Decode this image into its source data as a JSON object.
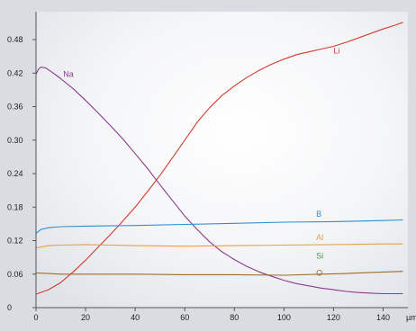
{
  "chart_data": {
    "type": "line",
    "title": "",
    "xlabel": "",
    "ylabel": "",
    "x_unit": "µm",
    "xlim": [
      0,
      150
    ],
    "ylim": [
      0,
      0.53
    ],
    "x_ticks": [
      0,
      20,
      40,
      60,
      80,
      100,
      120,
      140
    ],
    "y_ticks": [
      0,
      0.06,
      0.12,
      0.18,
      0.24,
      0.3,
      0.36,
      0.42,
      0.48
    ],
    "y_tick_labels": [
      "0",
      "0.06",
      "0.12",
      "0.18",
      "0.24",
      "0.30",
      "0.36",
      "0.42",
      "0.48"
    ],
    "grid": false,
    "series": [
      {
        "name": "Li",
        "color": "#d23b2e",
        "label_at": [
          120,
          0.455
        ],
        "points": [
          [
            0,
            0.024
          ],
          [
            5,
            0.032
          ],
          [
            10,
            0.045
          ],
          [
            15,
            0.064
          ],
          [
            20,
            0.085
          ],
          [
            25,
            0.108
          ],
          [
            30,
            0.131
          ],
          [
            35,
            0.155
          ],
          [
            40,
            0.18
          ],
          [
            45,
            0.208
          ],
          [
            50,
            0.237
          ],
          [
            55,
            0.268
          ],
          [
            60,
            0.3
          ],
          [
            65,
            0.332
          ],
          [
            70,
            0.358
          ],
          [
            75,
            0.38
          ],
          [
            80,
            0.397
          ],
          [
            85,
            0.412
          ],
          [
            90,
            0.425
          ],
          [
            95,
            0.436
          ],
          [
            100,
            0.445
          ],
          [
            105,
            0.453
          ],
          [
            110,
            0.458
          ],
          [
            115,
            0.463
          ],
          [
            120,
            0.468
          ],
          [
            125,
            0.475
          ],
          [
            130,
            0.483
          ],
          [
            135,
            0.491
          ],
          [
            140,
            0.499
          ],
          [
            145,
            0.506
          ],
          [
            148,
            0.511
          ]
        ]
      },
      {
        "name": "Na",
        "color": "#8a3c8c",
        "label_at": [
          11,
          0.413
        ],
        "points": [
          [
            0,
            0.418
          ],
          [
            1,
            0.427
          ],
          [
            2,
            0.431
          ],
          [
            4,
            0.429
          ],
          [
            7,
            0.42
          ],
          [
            10,
            0.41
          ],
          [
            15,
            0.392
          ],
          [
            20,
            0.371
          ],
          [
            25,
            0.349
          ],
          [
            30,
            0.326
          ],
          [
            35,
            0.302
          ],
          [
            40,
            0.276
          ],
          [
            45,
            0.249
          ],
          [
            50,
            0.22
          ],
          [
            55,
            0.192
          ],
          [
            60,
            0.164
          ],
          [
            65,
            0.14
          ],
          [
            70,
            0.118
          ],
          [
            75,
            0.1
          ],
          [
            80,
            0.086
          ],
          [
            85,
            0.074
          ],
          [
            90,
            0.064
          ],
          [
            95,
            0.056
          ],
          [
            100,
            0.049
          ],
          [
            105,
            0.043
          ],
          [
            110,
            0.039
          ],
          [
            115,
            0.035
          ],
          [
            120,
            0.032
          ],
          [
            125,
            0.029
          ],
          [
            130,
            0.027
          ],
          [
            135,
            0.026
          ],
          [
            140,
            0.025
          ],
          [
            145,
            0.025
          ],
          [
            148,
            0.025
          ]
        ]
      },
      {
        "name": "B",
        "color": "#2d8fcf",
        "label_at": [
          113,
          0.163
        ],
        "points": [
          [
            0,
            0.133
          ],
          [
            2,
            0.14
          ],
          [
            5,
            0.143
          ],
          [
            10,
            0.145
          ],
          [
            20,
            0.146
          ],
          [
            40,
            0.147
          ],
          [
            60,
            0.149
          ],
          [
            80,
            0.151
          ],
          [
            100,
            0.153
          ],
          [
            120,
            0.154
          ],
          [
            140,
            0.156
          ],
          [
            148,
            0.157
          ]
        ]
      },
      {
        "name": "Al",
        "color": "#e8a046",
        "label_at": [
          113,
          0.121
        ],
        "points": [
          [
            0,
            0.107
          ],
          [
            5,
            0.111
          ],
          [
            10,
            0.112
          ],
          [
            20,
            0.113
          ],
          [
            40,
            0.111
          ],
          [
            60,
            0.11
          ],
          [
            80,
            0.111
          ],
          [
            100,
            0.112
          ],
          [
            120,
            0.113
          ],
          [
            140,
            0.114
          ],
          [
            148,
            0.114
          ]
        ]
      },
      {
        "name": "Si",
        "color": "#3a9e3e",
        "label_at": [
          113,
          0.088
        ],
        "points": []
      },
      {
        "name": "O",
        "color": "#a06a2a",
        "label_at": [
          113,
          0.057
        ],
        "points": [
          [
            0,
            0.062
          ],
          [
            5,
            0.061
          ],
          [
            10,
            0.06
          ],
          [
            20,
            0.06
          ],
          [
            40,
            0.06
          ],
          [
            60,
            0.059
          ],
          [
            80,
            0.059
          ],
          [
            100,
            0.058
          ],
          [
            115,
            0.06
          ],
          [
            125,
            0.061
          ],
          [
            135,
            0.063
          ],
          [
            148,
            0.065
          ]
        ]
      }
    ]
  }
}
